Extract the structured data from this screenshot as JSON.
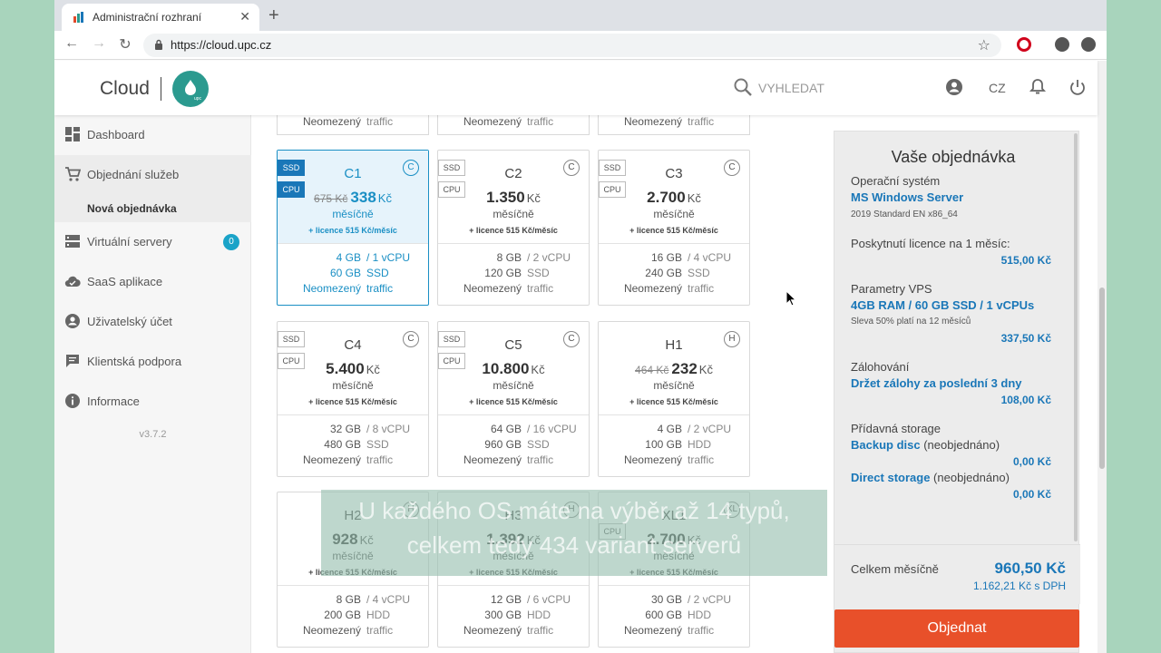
{
  "browser": {
    "tab_title": "Administrační rozhraní",
    "url": "https://cloud.upc.cz"
  },
  "header": {
    "brand": "Cloud",
    "logo_text": "upc",
    "search_placeholder": "VYHLEDAT",
    "language": "CZ"
  },
  "sidebar": {
    "items": [
      {
        "label": "Dashboard",
        "icon": "dashboard-icon"
      },
      {
        "label": "Objednání služeb",
        "icon": "cart-icon"
      },
      {
        "label": "Virtuální servery",
        "icon": "servers-icon"
      },
      {
        "label": "SaaS aplikace",
        "icon": "cloud-icon"
      },
      {
        "label": "Uživatelský účet",
        "icon": "account-icon"
      },
      {
        "label": "Klientská podpora",
        "icon": "chat-icon"
      },
      {
        "label": "Informace",
        "icon": "info-icon"
      }
    ],
    "sub_item": "Nová objednávka",
    "badge": "0",
    "version": "v3.7.2"
  },
  "top_partial": {
    "value": "Neomezený",
    "label": "traffic"
  },
  "cards": [
    {
      "name": "C1",
      "letter": "C",
      "old_price": "675 Kč",
      "price": "338",
      "unit": "Kč",
      "period": "měsíčně",
      "license": "+ licence 515 Kč/měsíc",
      "ssd": true,
      "cpu": true,
      "ssd_label": "SSD",
      "cpu_label": "CPU",
      "ram": "4 GB",
      "vcpu": "/ 1 vCPU",
      "disk": "60 GB",
      "disk_type": "SSD",
      "traffic": "Neomezený",
      "traffic_label": "traffic",
      "selected": true
    },
    {
      "name": "C2",
      "letter": "C",
      "old_price": "",
      "price": "1.350",
      "unit": "Kč",
      "period": "měsíčně",
      "license": "+ licence 515 Kč/měsíc",
      "ssd": true,
      "cpu": true,
      "ssd_label": "SSD",
      "cpu_label": "CPU",
      "ram": "8 GB",
      "vcpu": "/ 2 vCPU",
      "disk": "120 GB",
      "disk_type": "SSD",
      "traffic": "Neomezený",
      "traffic_label": "traffic",
      "selected": false
    },
    {
      "name": "C3",
      "letter": "C",
      "old_price": "",
      "price": "2.700",
      "unit": "Kč",
      "period": "měsíčně",
      "license": "+ licence 515 Kč/měsíc",
      "ssd": true,
      "cpu": true,
      "ssd_label": "SSD",
      "cpu_label": "CPU",
      "ram": "16 GB",
      "vcpu": "/ 4 vCPU",
      "disk": "240 GB",
      "disk_type": "SSD",
      "traffic": "Neomezený",
      "traffic_label": "traffic",
      "selected": false
    },
    {
      "name": "C4",
      "letter": "C",
      "old_price": "",
      "price": "5.400",
      "unit": "Kč",
      "period": "měsíčně",
      "license": "+ licence 515 Kč/měsíc",
      "ssd": true,
      "cpu": true,
      "ssd_label": "SSD",
      "cpu_label": "CPU",
      "ram": "32 GB",
      "vcpu": "/ 8 vCPU",
      "disk": "480 GB",
      "disk_type": "SSD",
      "traffic": "Neomezený",
      "traffic_label": "traffic",
      "selected": false
    },
    {
      "name": "C5",
      "letter": "C",
      "old_price": "",
      "price": "10.800",
      "unit": "Kč",
      "period": "měsíčně",
      "license": "+ licence 515 Kč/měsíc",
      "ssd": true,
      "cpu": true,
      "ssd_label": "SSD",
      "cpu_label": "CPU",
      "ram": "64 GB",
      "vcpu": "/ 16 vCPU",
      "disk": "960 GB",
      "disk_type": "SSD",
      "traffic": "Neomezený",
      "traffic_label": "traffic",
      "selected": false
    },
    {
      "name": "H1",
      "letter": "H",
      "old_price": "464 Kč",
      "price": "232",
      "unit": "Kč",
      "period": "měsíčně",
      "license": "+ licence 515 Kč/měsíc",
      "ssd": false,
      "cpu": false,
      "ssd_label": "",
      "cpu_label": "",
      "ram": "4 GB",
      "vcpu": "/ 2 vCPU",
      "disk": "100 GB",
      "disk_type": "HDD",
      "traffic": "Neomezený",
      "traffic_label": "traffic",
      "selected": false
    },
    {
      "name": "H2",
      "letter": "H",
      "old_price": "",
      "price": "928",
      "unit": "Kč",
      "period": "měsíčně",
      "license": "+ licence 515 Kč/měsíc",
      "ssd": false,
      "cpu": false,
      "ssd_label": "",
      "cpu_label": "",
      "ram": "8 GB",
      "vcpu": "/ 4 vCPU",
      "disk": "200 GB",
      "disk_type": "HDD",
      "traffic": "Neomezený",
      "traffic_label": "traffic",
      "selected": false
    },
    {
      "name": "H3",
      "letter": "H",
      "old_price": "",
      "price": "1.392",
      "unit": "Kč",
      "period": "měsíčně",
      "license": "+ licence 515 Kč/měsíc",
      "ssd": false,
      "cpu": false,
      "ssd_label": "",
      "cpu_label": "",
      "ram": "12 GB",
      "vcpu": "/ 6 vCPU",
      "disk": "300 GB",
      "disk_type": "HDD",
      "traffic": "Neomezený",
      "traffic_label": "traffic",
      "selected": false
    },
    {
      "name": "XL1",
      "letter": "XL",
      "old_price": "",
      "price": "2.700",
      "unit": "Kč",
      "period": "měsíčně",
      "license": "+ licence 515 Kč/měsíc",
      "ssd": false,
      "cpu": true,
      "ssd_label": "",
      "cpu_label": "CPU",
      "ram": "30 GB",
      "vcpu": "/ 2 vCPU",
      "disk": "600 GB",
      "disk_type": "HDD",
      "traffic": "Neomezený",
      "traffic_label": "traffic",
      "selected": false
    }
  ],
  "order": {
    "title": "Vaše objednávka",
    "os_label": "Operační systém",
    "os_value": "MS Windows Server",
    "os_detail": "2019 Standard EN x86_64",
    "license_label": "Poskytnutí licence na 1 měsíc:",
    "license_price": "515,00 Kč",
    "vps_label": "Parametry VPS",
    "vps_value": "4GB RAM / 60 GB SSD / 1 vCPUs",
    "vps_detail": "Sleva 50% platí na 12 měsíců",
    "vps_price": "337,50 Kč",
    "backup_label": "Zálohování",
    "backup_value": "Držet zálohy za poslední 3 dny",
    "backup_price": "108,00 Kč",
    "storage_label": "Přídavná storage",
    "backup_disc": "Backup disc",
    "backup_disc_state": "(neobjednáno)",
    "backup_disc_price": "0,00 Kč",
    "direct_storage": "Direct storage",
    "direct_storage_state": "(neobjednáno)",
    "direct_storage_price": "0,00 Kč",
    "total_label": "Celkem měsíčně",
    "total": "960,50 Kč",
    "total_vat": "1.162,21 Kč s DPH",
    "button": "Objednat"
  },
  "subtitle": {
    "line1": "U každého OS máte na výběr až 14 typů,",
    "line2": "celkem tedy 434 variant serverů"
  },
  "colors": {
    "accent": "#1a77b8",
    "brand": "#2b9a8f",
    "order_button": "#e8502a"
  }
}
